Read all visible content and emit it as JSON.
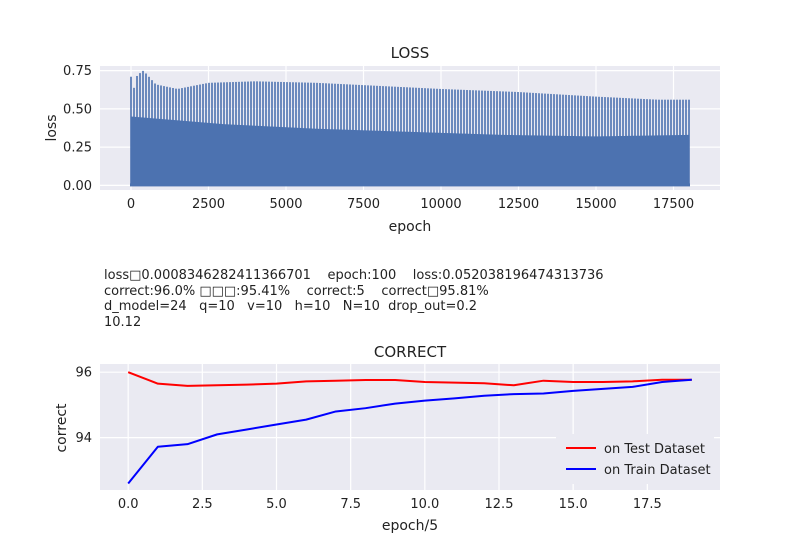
{
  "chart_data": [
    {
      "type": "line",
      "title": "LOSS",
      "xlabel": "epoch",
      "ylabel": "loss",
      "xlim": [
        -1000,
        19000
      ],
      "ylim": [
        -0.03,
        0.78
      ],
      "xticks": [
        0,
        2500,
        5000,
        7500,
        10000,
        12500,
        15000,
        17500
      ],
      "xtick_labels": [
        "0",
        "2500",
        "5000",
        "7500",
        "10000",
        "12500",
        "15000",
        "17500"
      ],
      "yticks": [
        0.0,
        0.25,
        0.5,
        0.75
      ],
      "ytick_labels": [
        "0.00",
        "0.25",
        "0.50",
        "0.75"
      ],
      "grid": true,
      "series": [
        {
          "color": "#4c72b0",
          "x_range": [
            0,
            18000
          ],
          "peak_envelope": [
            [
              0,
              0.71
            ],
            [
              50,
              0.6
            ],
            [
              200,
              0.72
            ],
            [
              400,
              0.75
            ],
            [
              800,
              0.66
            ],
            [
              1500,
              0.63
            ],
            [
              2500,
              0.67
            ],
            [
              4000,
              0.68
            ],
            [
              6000,
              0.67
            ],
            [
              8000,
              0.65
            ],
            [
              10000,
              0.63
            ],
            [
              12500,
              0.61
            ],
            [
              15000,
              0.58
            ],
            [
              17000,
              0.56
            ],
            [
              18000,
              0.56
            ]
          ],
          "solid_band_top": [
            [
              0,
              0.45
            ],
            [
              3000,
              0.4
            ],
            [
              6000,
              0.37
            ],
            [
              9000,
              0.35
            ],
            [
              12000,
              0.33
            ],
            [
              15000,
              0.32
            ],
            [
              18000,
              0.33
            ]
          ],
          "floor": 0.0
        }
      ]
    },
    {
      "type": "line",
      "title": "CORRECT",
      "xlabel": "epoch/5",
      "ylabel": "correct",
      "xlim": [
        -0.95,
        19.95
      ],
      "ylim": [
        92.4,
        96.25
      ],
      "xticks": [
        0,
        2.5,
        5,
        7.5,
        10,
        12.5,
        15,
        17.5
      ],
      "xtick_labels": [
        "0.0",
        "2.5",
        "5.0",
        "7.5",
        "10.0",
        "12.5",
        "15.0",
        "17.5"
      ],
      "yticks": [
        94,
        96
      ],
      "ytick_labels": [
        "94",
        "96"
      ],
      "grid": true,
      "legend": "lower-right",
      "x": [
        0,
        1,
        2,
        3,
        4,
        5,
        6,
        7,
        8,
        9,
        10,
        11,
        12,
        13,
        14,
        15,
        16,
        17,
        18,
        19
      ],
      "series": [
        {
          "name": "on Test Dataset",
          "color": "#ff0000",
          "values": [
            96.0,
            95.65,
            95.58,
            95.6,
            95.62,
            95.65,
            95.72,
            95.74,
            95.76,
            95.76,
            95.7,
            95.68,
            95.66,
            95.6,
            95.74,
            95.7,
            95.7,
            95.72,
            95.77,
            95.77
          ]
        },
        {
          "name": "on Train Dataset",
          "color": "#0000ff",
          "values": [
            92.6,
            93.72,
            93.8,
            94.1,
            94.25,
            94.4,
            94.55,
            94.8,
            94.9,
            95.04,
            95.13,
            95.2,
            95.28,
            95.33,
            95.35,
            95.43,
            95.49,
            95.55,
            95.7,
            95.77
          ]
        }
      ]
    }
  ],
  "info_lines": [
    "loss□0.0008346282411366701    epoch:100    loss:0.052038196474313736",
    "correct:96.0% □□□:95.41%    correct:5    correct□95.81%",
    "d_model=24   q=10   v=10   h=10   N=10  drop_out=0.2",
    "10.12"
  ]
}
